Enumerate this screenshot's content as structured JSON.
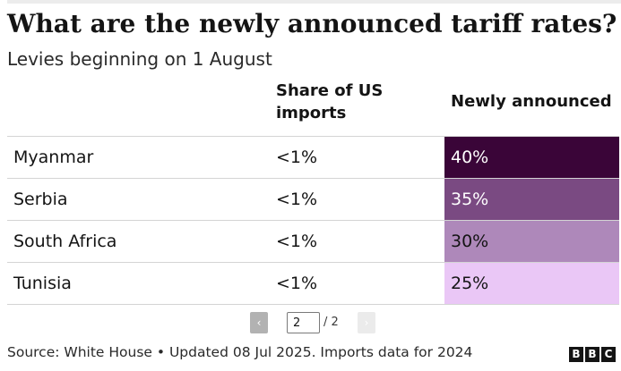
{
  "title": "What are the newly announced tariff rates?",
  "subtitle": "Levies beginning on 1 August",
  "footer": "Source: White House • Updated 08 Jul 2025. Imports data for 2024",
  "logo": {
    "letters": [
      "B",
      "B",
      "C"
    ]
  },
  "pagination": {
    "prev_icon": "chevron-left-icon",
    "next_icon": "chevron-right-icon",
    "current_page": "2",
    "total_label": "/ 2"
  },
  "colors": {
    "rate_40": "#3a0538",
    "rate_35": "#7a4a82",
    "rate_30": "#ae88ba",
    "rate_25": "#eac7f6",
    "text_dark": "#141414",
    "text_light": "#ffffff"
  },
  "chart_data": {
    "type": "table",
    "title": "What are the newly announced tariff rates?",
    "subtitle": "Levies beginning on 1 August",
    "columns": [
      "",
      "Share of US imports",
      "Newly announced"
    ],
    "rows": [
      {
        "country": "Myanmar",
        "share": "<1%",
        "rate": "40%",
        "rate_value": 40
      },
      {
        "country": "Serbia",
        "share": "<1%",
        "rate": "35%",
        "rate_value": 35
      },
      {
        "country": "South Africa",
        "share": "<1%",
        "rate": "30%",
        "rate_value": 30
      },
      {
        "country": "Tunisia",
        "share": "<1%",
        "rate": "25%",
        "rate_value": 25
      }
    ]
  }
}
